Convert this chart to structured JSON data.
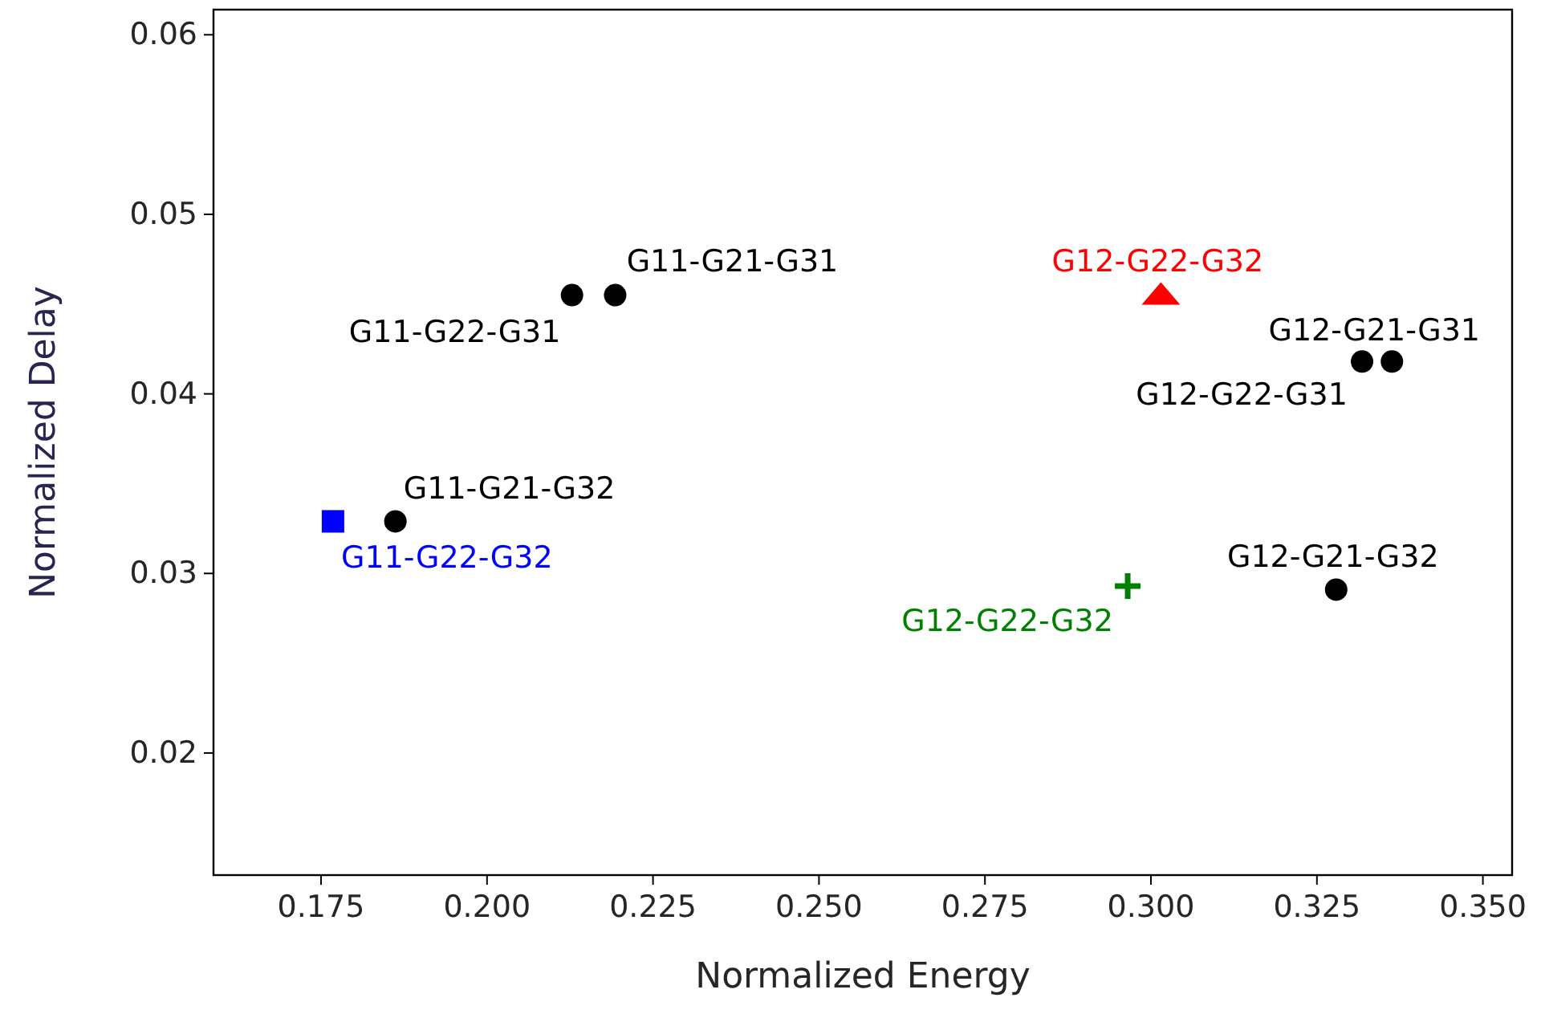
{
  "chart_data": {
    "type": "scatter",
    "xlabel": "Normalized Energy",
    "ylabel": "Normalized Delay",
    "xlim": [
      0.1588,
      0.3544
    ],
    "xticks": [
      {
        "value": 0.175,
        "label": "0.175"
      },
      {
        "value": 0.2,
        "label": "0.200"
      },
      {
        "value": 0.225,
        "label": "0.225"
      },
      {
        "value": 0.25,
        "label": "0.250"
      },
      {
        "value": 0.275,
        "label": "0.275"
      },
      {
        "value": 0.3,
        "label": "0.300"
      },
      {
        "value": 0.325,
        "label": "0.325"
      },
      {
        "value": 0.35,
        "label": "0.350"
      }
    ],
    "ylim": [
      0.0132,
      0.0614
    ],
    "yticks": [
      0.02,
      0.03,
      0.04,
      0.05,
      0.06
    ],
    "grid": false,
    "series": [
      {
        "name": "G11-G22-G31",
        "color": "#000000",
        "marker": "circle",
        "x": [
          0.2128
        ],
        "values": [
          0.0455
        ]
      },
      {
        "name": "G11-G21-G31",
        "color": "#000000",
        "marker": "circle",
        "x": [
          0.2193
        ],
        "values": [
          0.0455
        ]
      },
      {
        "name": "G11-G21-G32",
        "color": "#000000",
        "marker": "circle",
        "x": [
          0.1862
        ],
        "values": [
          0.0329
        ]
      },
      {
        "name": "G11-G22-G32",
        "color": "#0000ff",
        "marker": "square",
        "x": [
          0.1768
        ],
        "values": [
          0.0329
        ]
      },
      {
        "name": "G12-G22-G32",
        "color": "#ff0000",
        "marker": "triangle",
        "x": [
          0.3015
        ],
        "values": [
          0.0455
        ]
      },
      {
        "name": "G12-G22-G31",
        "color": "#000000",
        "marker": "circle",
        "x": [
          0.3318
        ],
        "values": [
          0.0418
        ]
      },
      {
        "name": "G12-G21-G31",
        "color": "#000000",
        "marker": "circle",
        "x": [
          0.3363
        ],
        "values": [
          0.0418
        ]
      },
      {
        "name": "G12-G21-G32",
        "color": "#000000",
        "marker": "circle",
        "x": [
          0.3279
        ],
        "values": [
          0.0291
        ]
      },
      {
        "name": "G12-G22-G32",
        "color": "#008000",
        "marker": "cross",
        "x": [
          0.2965
        ],
        "values": [
          0.0293
        ]
      }
    ]
  }
}
